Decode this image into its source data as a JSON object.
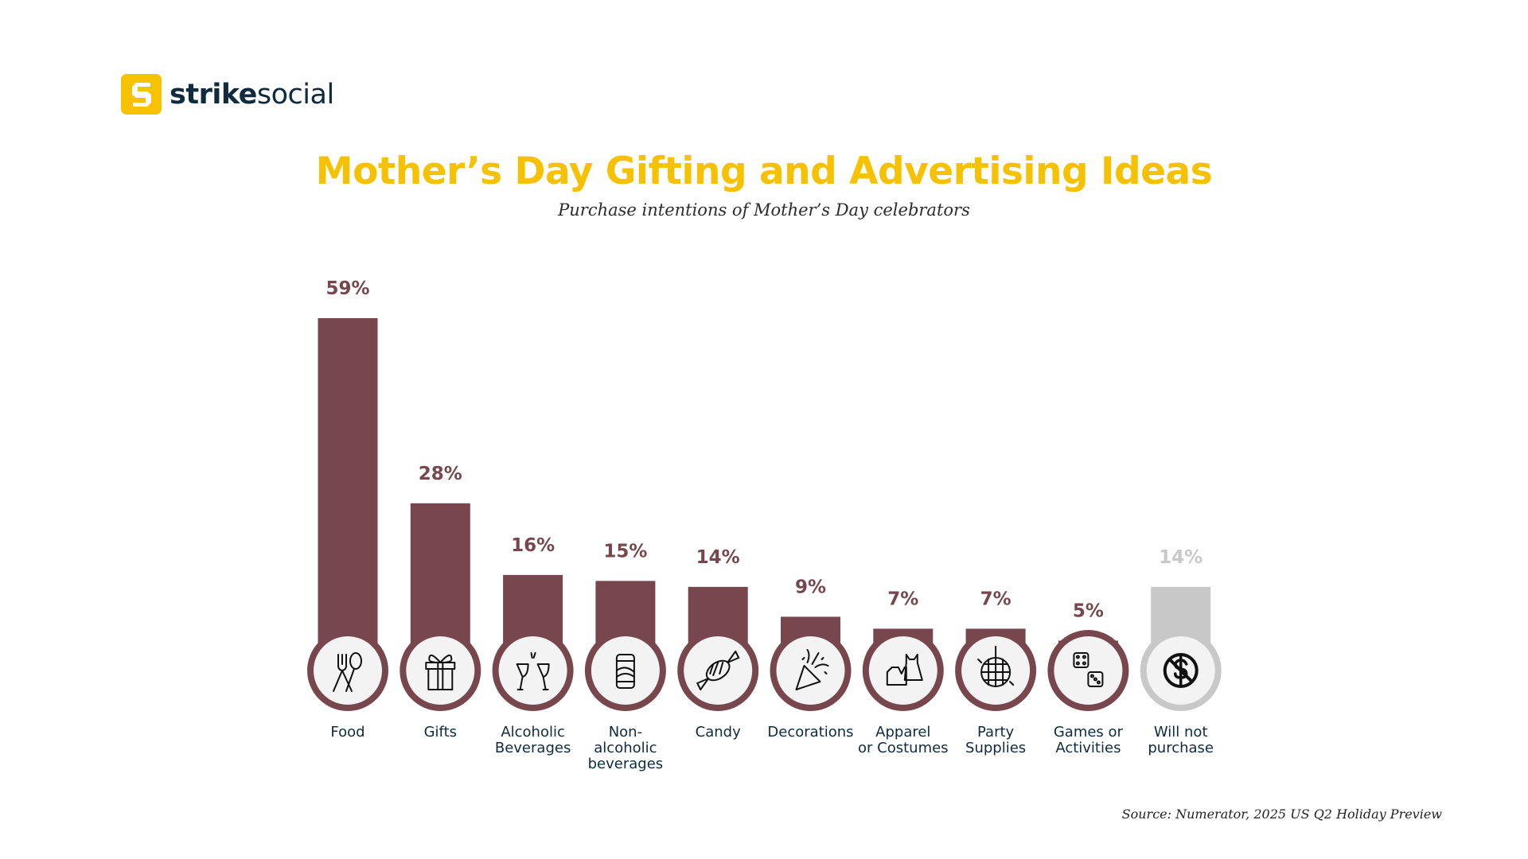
{
  "logo": {
    "brand_bold": "strike",
    "brand_light": "social"
  },
  "title": "Mother’s Day Gifting and Advertising Ideas",
  "subtitle": "Purchase intentions of Mother’s Day celebrators",
  "source": "Source: Numerator, 2025 US Q2 Holiday Preview",
  "colors": {
    "bar": "#77474d",
    "bar_muted": "#c8c8c8",
    "icon_bg": "#f3f3f3",
    "title": "#f6c100",
    "label": "#0f2b3d"
  },
  "chart_data": {
    "type": "bar",
    "title": "Mother’s Day Gifting and Advertising Ideas",
    "subtitle": "Purchase intentions of Mother’s Day celebrators",
    "categories": [
      [
        "Food"
      ],
      [
        "Gifts"
      ],
      [
        "Alcoholic",
        "Beverages"
      ],
      [
        "Non-",
        "alcoholic",
        "beverages"
      ],
      [
        "Candy"
      ],
      [
        "Decorations"
      ],
      [
        "Apparel",
        "or Costumes"
      ],
      [
        "Party",
        "Supplies"
      ],
      [
        "Games or",
        "Activities"
      ],
      [
        "Will not",
        "purchase"
      ]
    ],
    "values": [
      59,
      28,
      16,
      15,
      14,
      9,
      7,
      7,
      5,
      14
    ],
    "data_labels": [
      "59%",
      "28%",
      "16%",
      "15%",
      "14%",
      "9%",
      "7%",
      "7%",
      "5%",
      "14%"
    ],
    "icons": [
      "fork-spoon-icon",
      "gift-icon",
      "wine-glasses-icon",
      "soda-can-icon",
      "candy-icon",
      "party-popper-icon",
      "apparel-icon",
      "disco-ball-icon",
      "dice-icon",
      "no-dollar-icon"
    ],
    "muted": [
      false,
      false,
      false,
      false,
      false,
      false,
      false,
      false,
      false,
      true
    ],
    "ylim": [
      0,
      60
    ],
    "grid": false,
    "legend": "none"
  }
}
